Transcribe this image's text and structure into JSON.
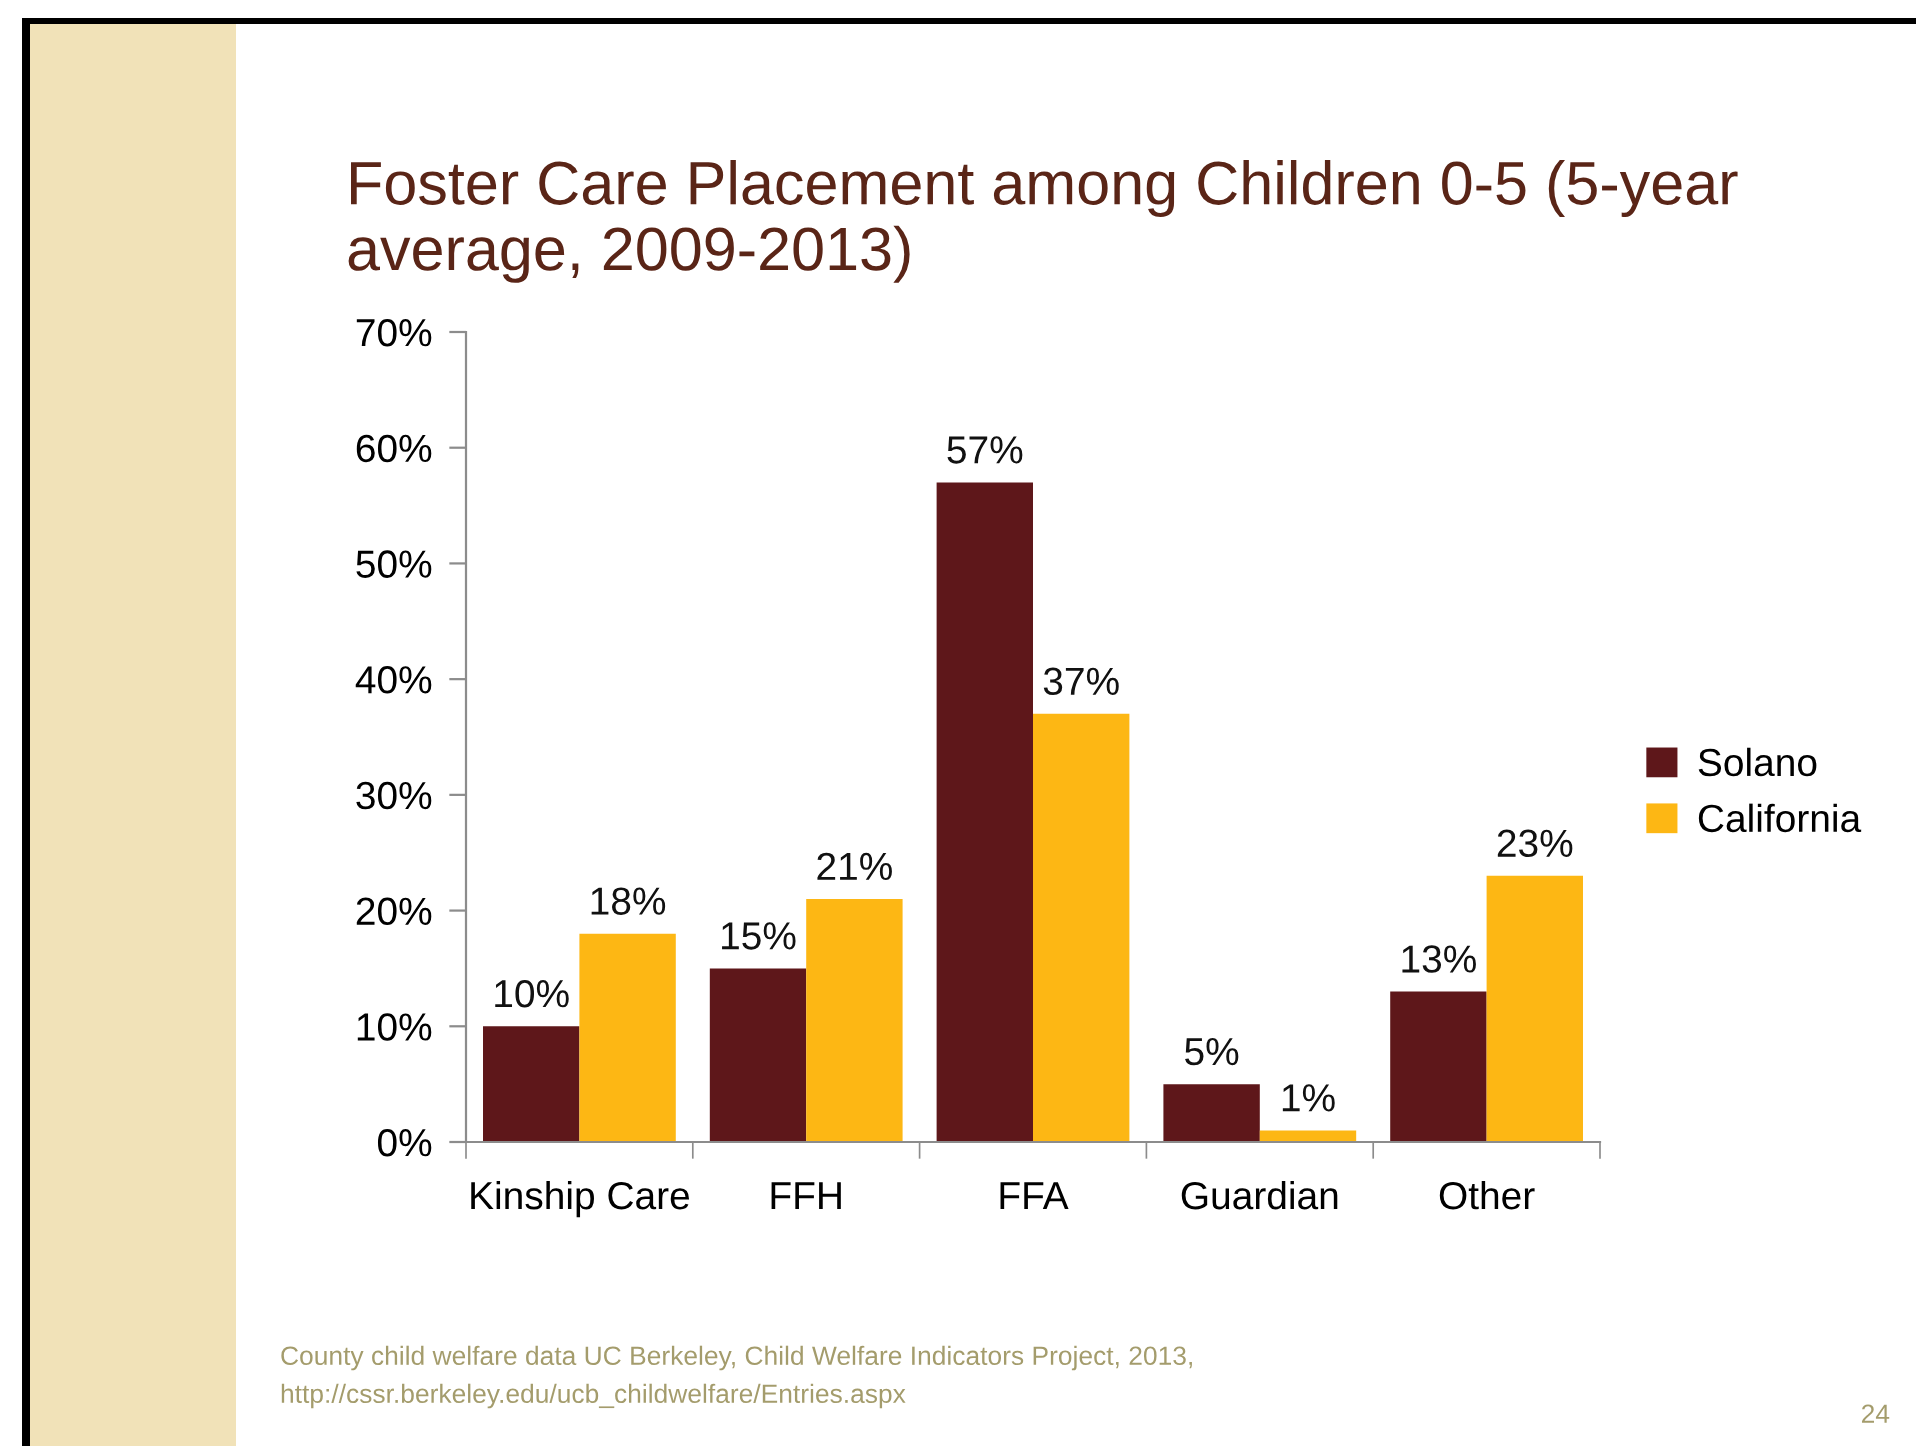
{
  "chart_data": {
    "type": "bar",
    "title": "Foster Care Placement among Children 0-5 (5-year average, 2009-2013)",
    "categories": [
      "Kinship Care",
      "FFH",
      "FFA",
      "Guardian",
      "Other"
    ],
    "series": [
      {
        "name": "Solano",
        "color": "#5e171a",
        "values": [
          10,
          15,
          57,
          5,
          13
        ],
        "value_labels": [
          "10%",
          "15%",
          "57%",
          "5%",
          "13%"
        ]
      },
      {
        "name": "California",
        "color": "#fdb714",
        "values": [
          18,
          21,
          37,
          1,
          23
        ],
        "value_labels": [
          "18%",
          "21%",
          "37%",
          "1%",
          "23%"
        ]
      }
    ],
    "ylim": [
      0,
      70
    ],
    "yticks": [
      {
        "value": 0,
        "label": "0%"
      },
      {
        "value": 10,
        "label": "10%"
      },
      {
        "value": 20,
        "label": "20%"
      },
      {
        "value": 30,
        "label": "30%"
      },
      {
        "value": 40,
        "label": "40%"
      },
      {
        "value": 50,
        "label": "50%"
      },
      {
        "value": 60,
        "label": "60%"
      },
      {
        "value": 70,
        "label": "70%"
      }
    ],
    "grid": false,
    "legend": "right",
    "annotations": [
      "County child welfare data UC Berkeley, Child Welfare Indicators Project, 2013,",
      "http://cssr.berkeley.edu/ucb_childwelfare/Entries.aspx",
      "24"
    ]
  }
}
